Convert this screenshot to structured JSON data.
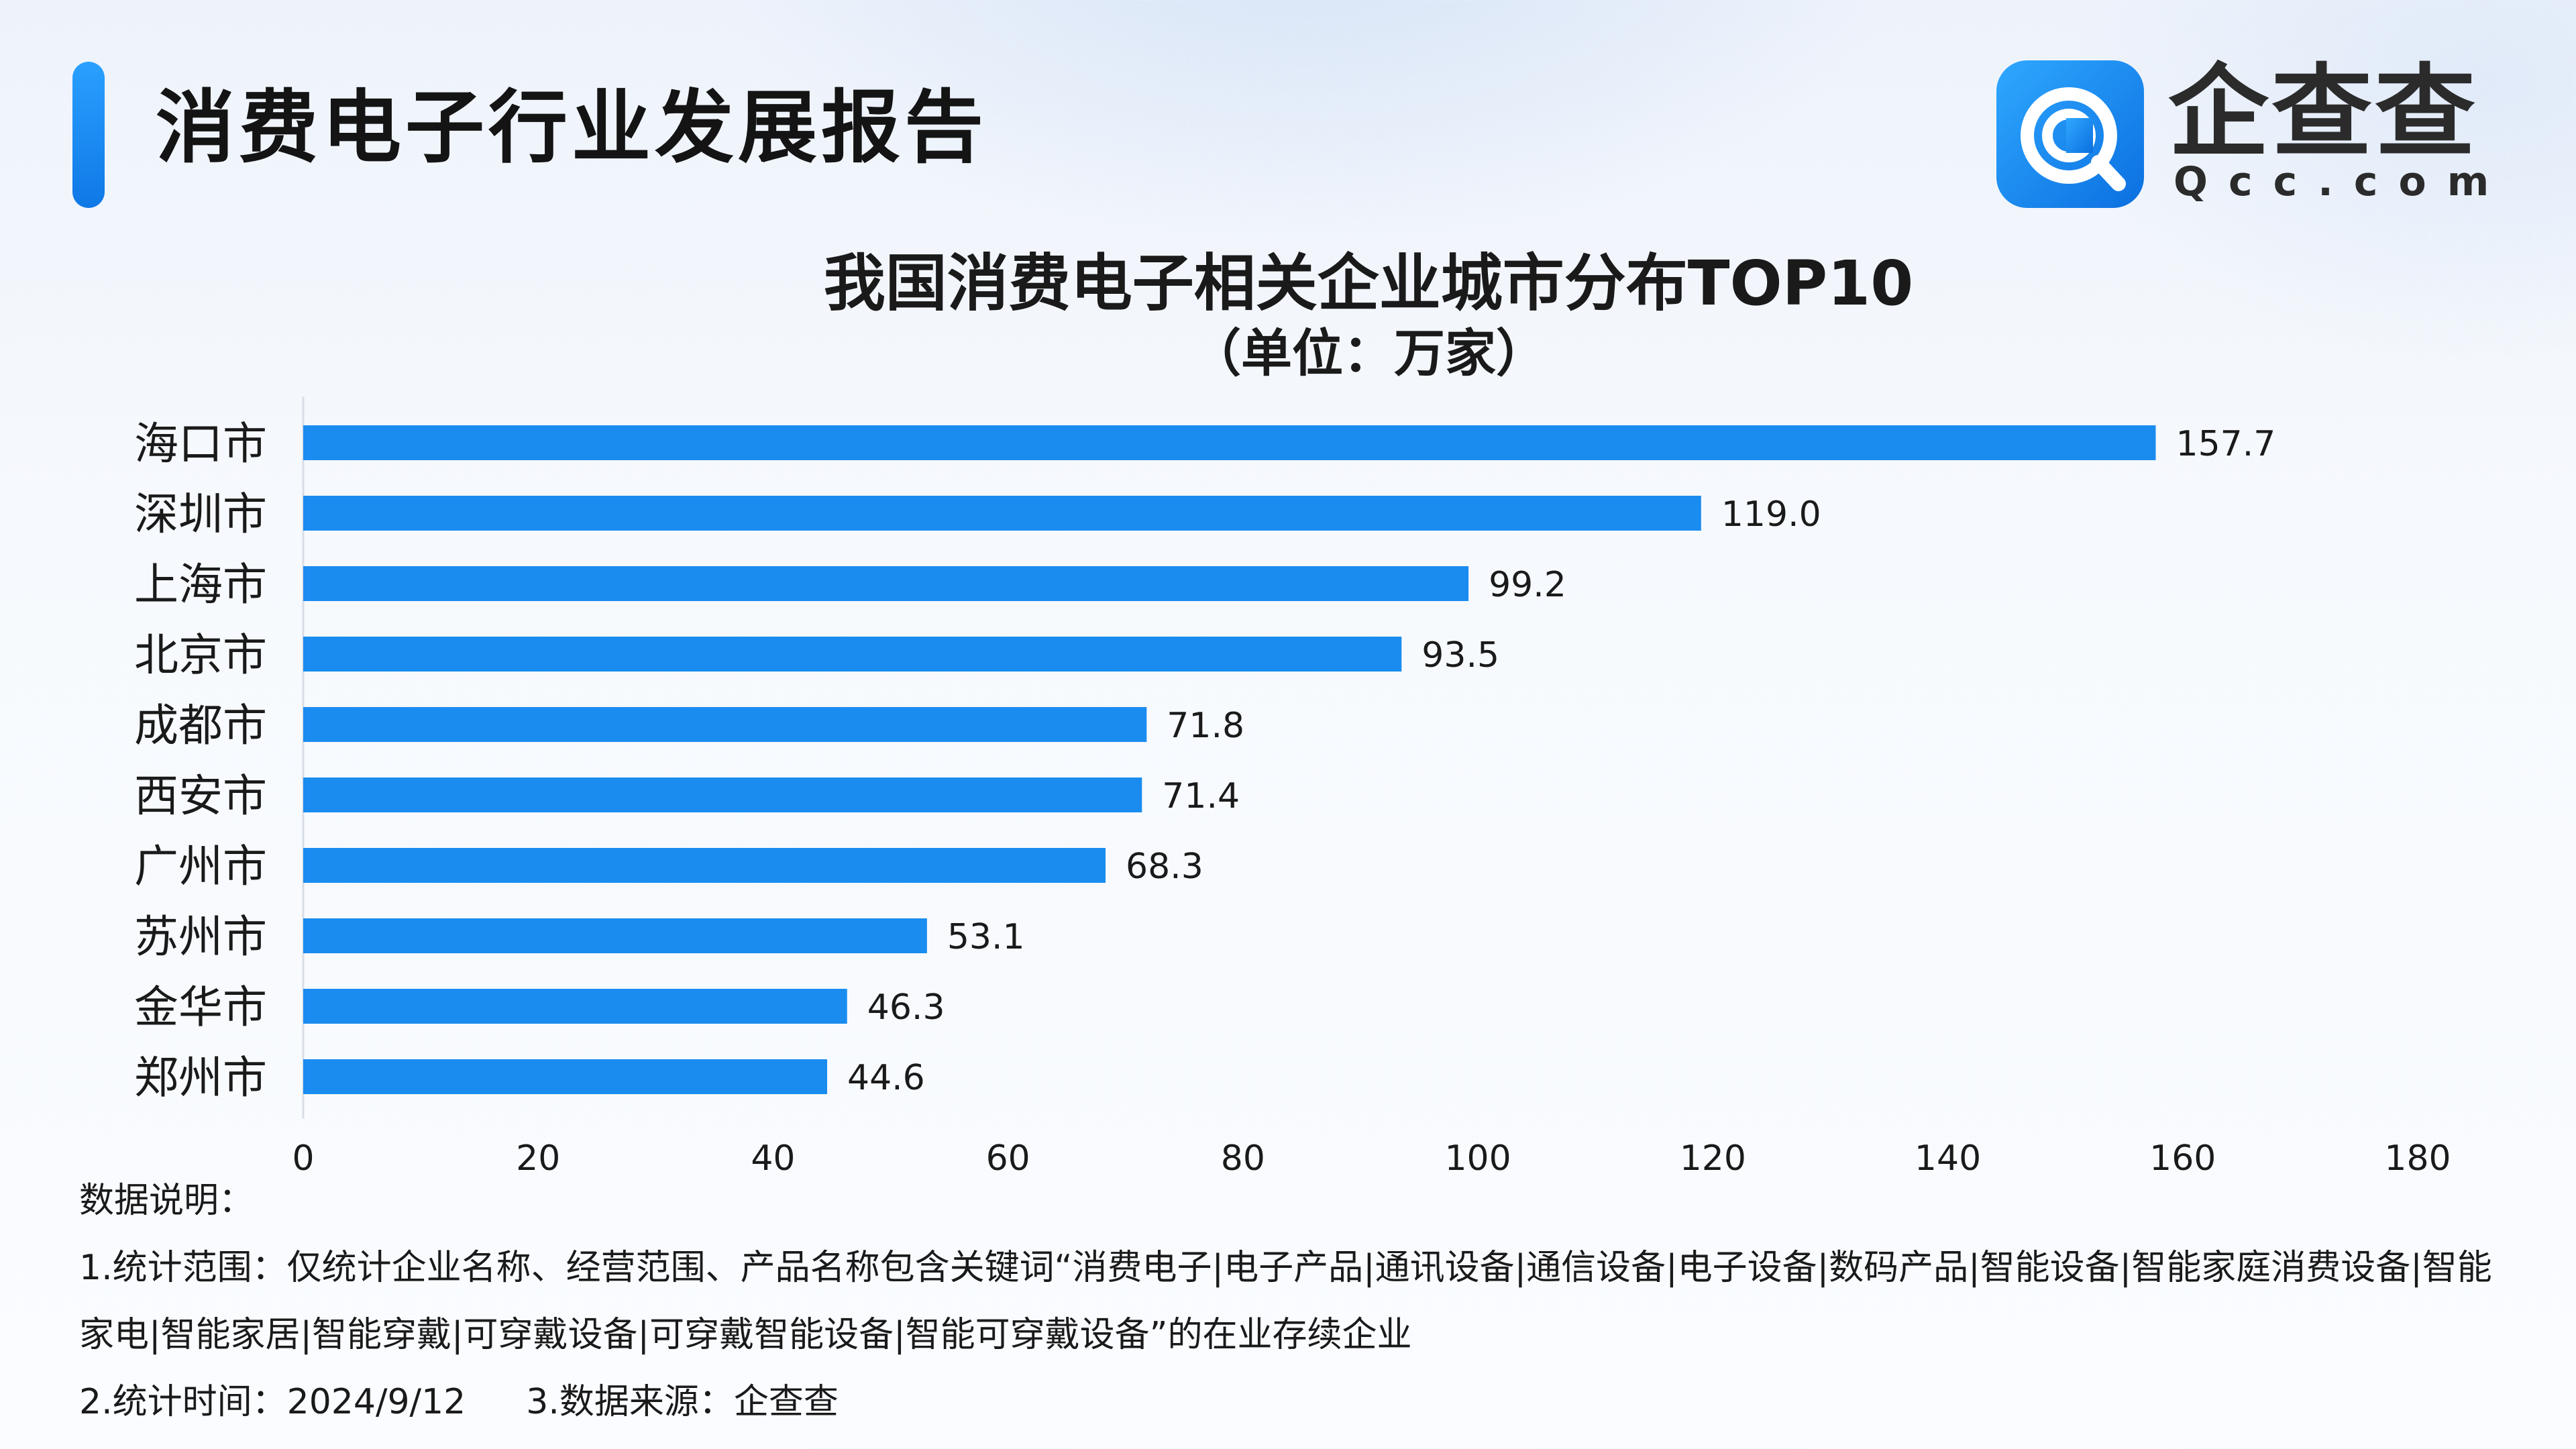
{
  "header": {
    "title": "消费电子行业发展报告"
  },
  "logo": {
    "name": "企查查",
    "domain": "Qcc.com",
    "brand_color": "#1a8cf0"
  },
  "chart_data": {
    "type": "bar",
    "orientation": "horizontal",
    "title": "我国消费电子相关企业城市分布TOP10",
    "subtitle": "（单位：万家）",
    "categories": [
      "海口市",
      "深圳市",
      "上海市",
      "北京市",
      "成都市",
      "西安市",
      "广州市",
      "苏州市",
      "金华市",
      "郑州市"
    ],
    "values": [
      157.7,
      119.0,
      99.2,
      93.5,
      71.8,
      71.4,
      68.3,
      53.1,
      46.3,
      44.6
    ],
    "value_labels": [
      "157.7",
      "119.0",
      "99.2",
      "93.5",
      "71.8",
      "71.4",
      "68.3",
      "53.1",
      "46.3",
      "44.6"
    ],
    "x_ticks": [
      0,
      20,
      40,
      60,
      80,
      100,
      120,
      140,
      160,
      180
    ],
    "xlim": [
      0,
      180
    ],
    "xlabel": "",
    "ylabel": "",
    "grid": false,
    "bar_color": "#1a8cf0"
  },
  "notes": {
    "heading": "数据说明：",
    "scope": "1.统计范围：仅统计企业名称、经营范围、产品名称包含关键词“消费电子|电子产品|通讯设备|通信设备|电子设备|数码产品|智能设备|智能家庭消费设备|智能家电|智能家居|智能穿戴|可穿戴设备|可穿戴智能设备|智能可穿戴设备”的在业存续企业",
    "time": "2.统计时间：2024/9/12",
    "source": "3.数据来源：企查查"
  }
}
